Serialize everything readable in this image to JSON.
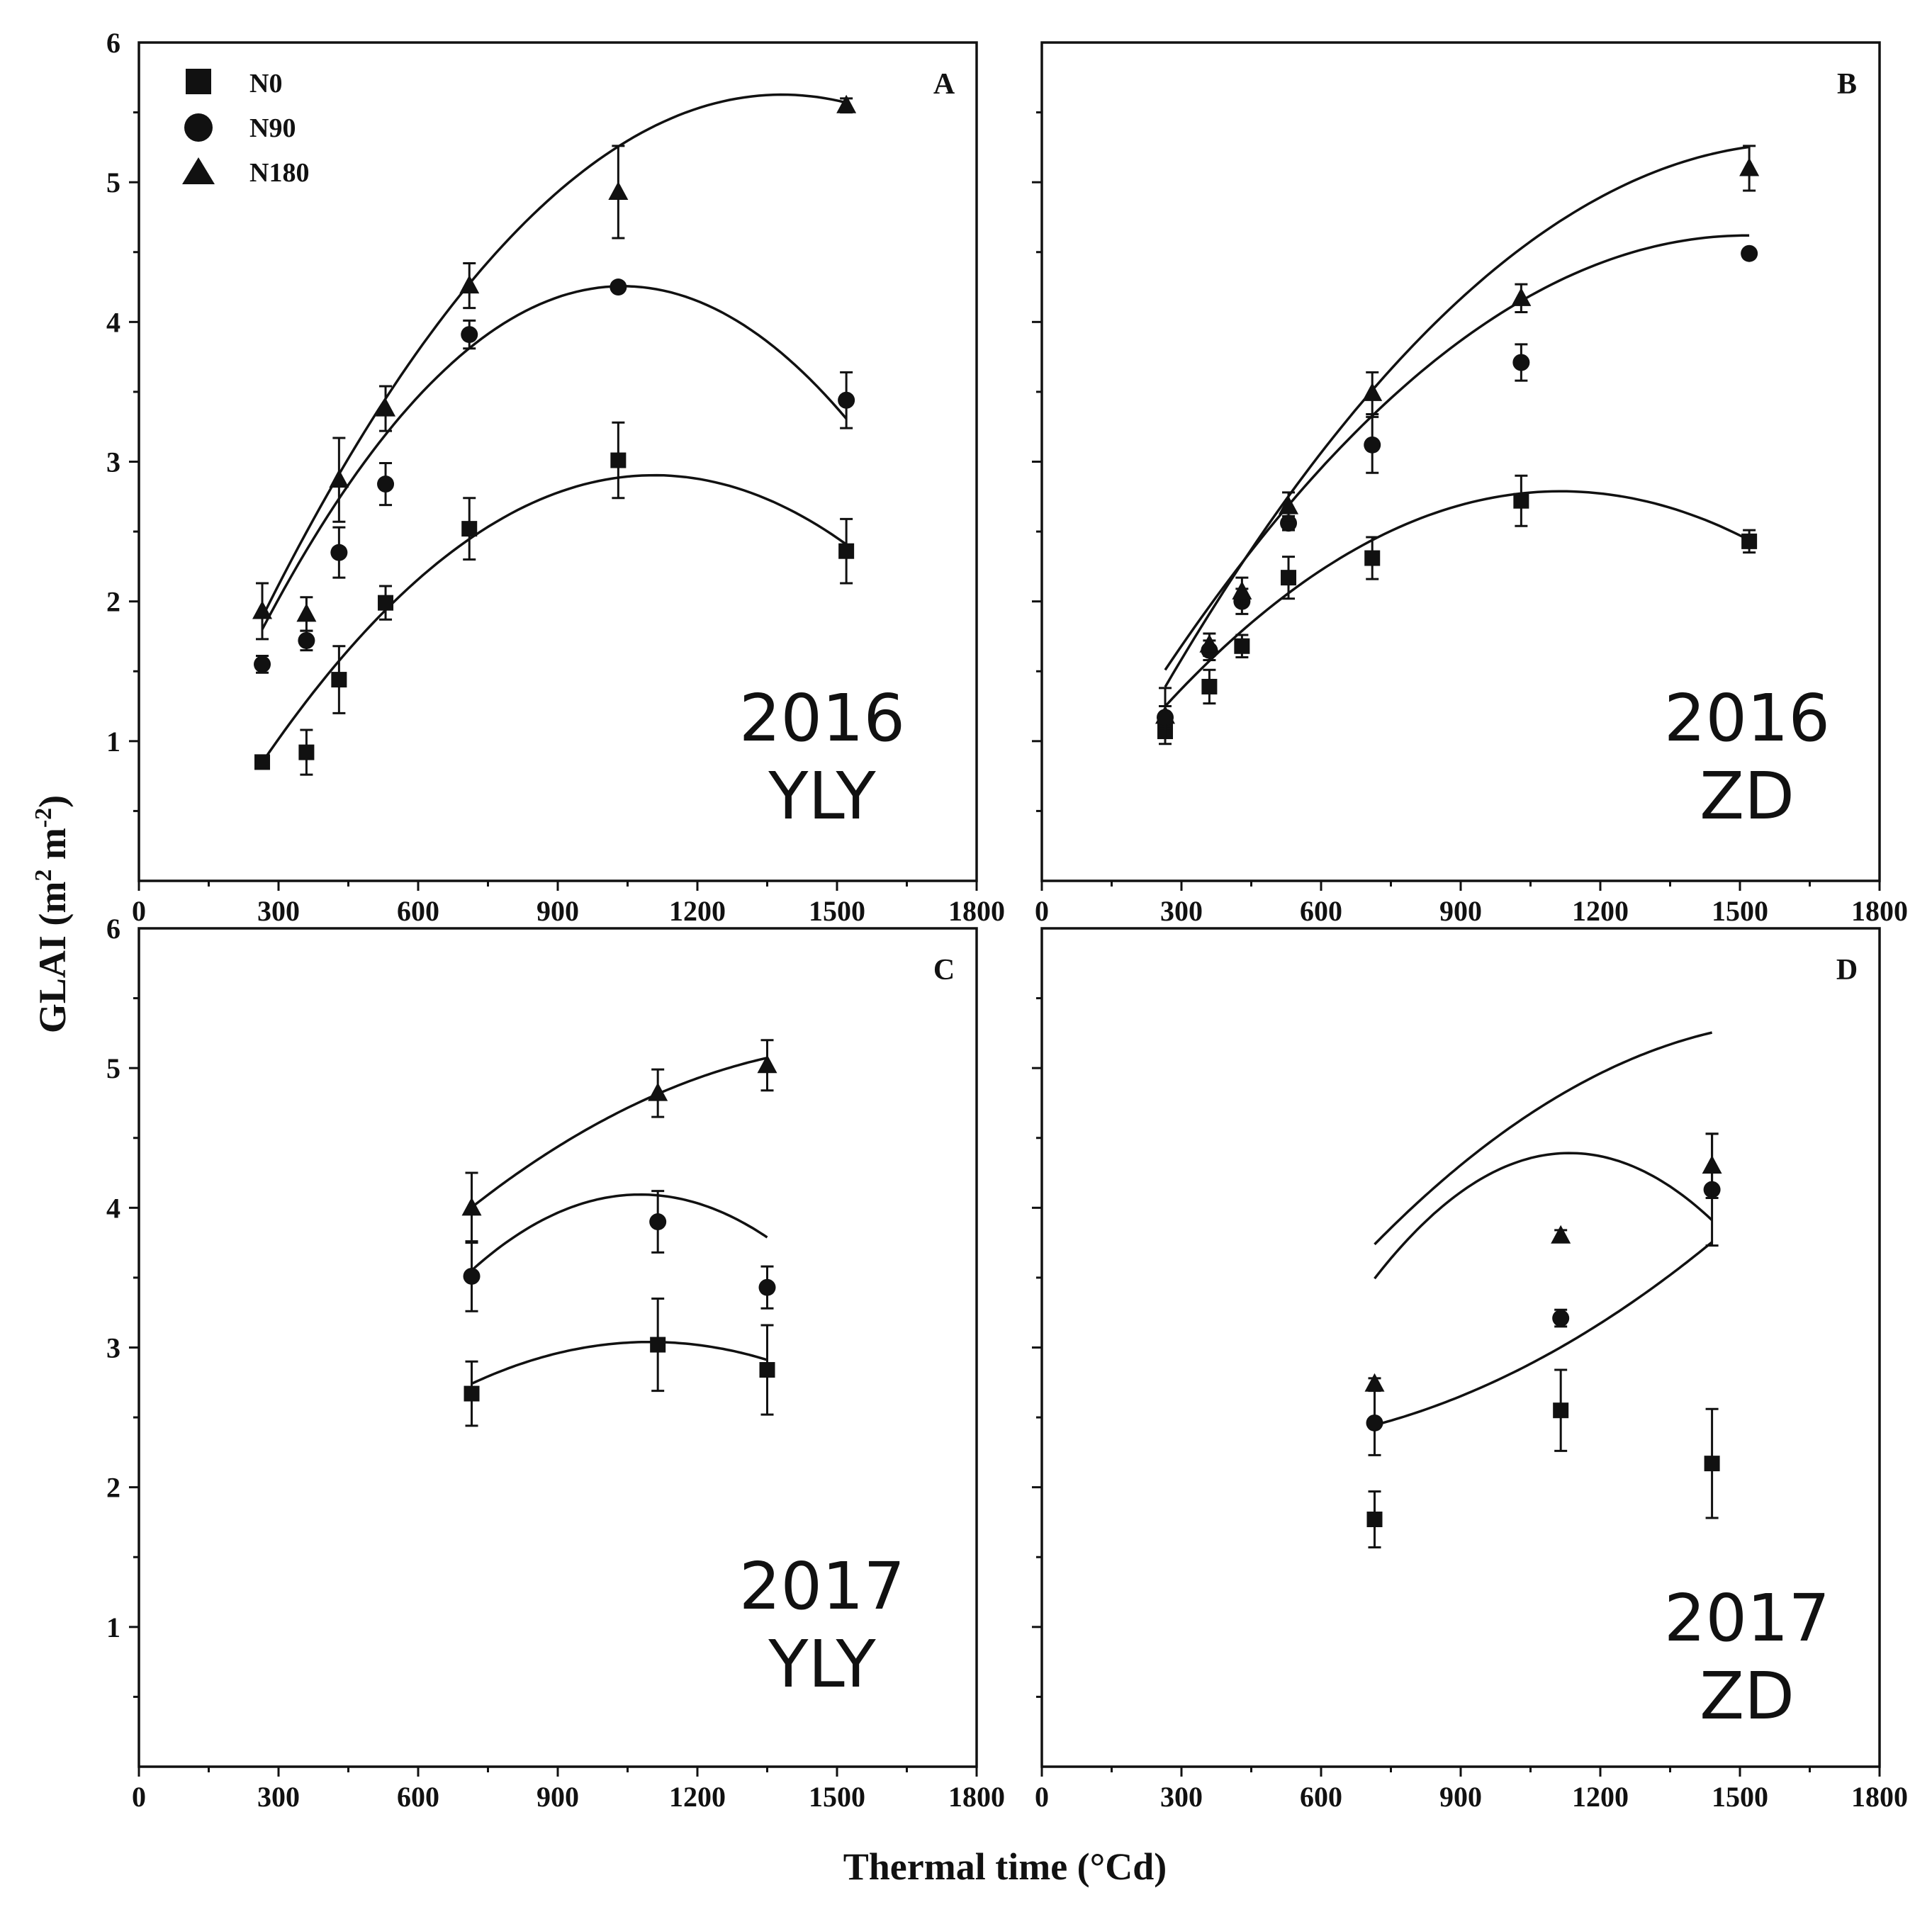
{
  "figure": {
    "ylabel": "GLAI (m",
    "ylabel_sup1": "2",
    "ylabel_mid": " m",
    "ylabel_sup2": "-2",
    "ylabel_end": ")",
    "xlabel": "Thermal time (°Cd)"
  },
  "legend": [
    {
      "name": "N0",
      "marker": "square"
    },
    {
      "name": "N90",
      "marker": "circle"
    },
    {
      "name": "N180",
      "marker": "triangle"
    }
  ],
  "chart_data": [
    {
      "type": "scatter",
      "panel": "A",
      "annotation": [
        "2016",
        "YLY"
      ],
      "xlim": [
        0,
        1800
      ],
      "ylim": [
        0,
        6
      ],
      "xticks": [
        0,
        300,
        600,
        900,
        1200,
        1500,
        1800
      ],
      "yticks": [
        1,
        2,
        3,
        4,
        5,
        6
      ],
      "series": [
        {
          "name": "N0",
          "marker": "square",
          "x": [
            265,
            360,
            430,
            530,
            710,
            1030,
            1520
          ],
          "y": [
            0.85,
            0.92,
            1.44,
            1.99,
            2.52,
            3.01,
            2.36
          ],
          "err": [
            0.03,
            0.16,
            0.24,
            0.12,
            0.22,
            0.27,
            0.23
          ],
          "fit": [
            -2.9e-06,
            0.00642,
            -0.65
          ]
        },
        {
          "name": "N90",
          "marker": "circle",
          "x": [
            265,
            360,
            430,
            530,
            710,
            1030,
            1520
          ],
          "y": [
            1.55,
            1.72,
            2.35,
            2.84,
            3.91,
            4.25,
            3.44
          ],
          "err": [
            0.06,
            0.07,
            0.18,
            0.15,
            0.1,
            0.03,
            0.2
          ],
          "fit": [
            -4.1e-06,
            0.00852,
            -0.17
          ]
        },
        {
          "name": "N180",
          "marker": "triangle",
          "x": [
            265,
            360,
            430,
            530,
            710,
            1030,
            1520
          ],
          "y": [
            1.93,
            1.91,
            2.87,
            3.38,
            4.26,
            4.93,
            5.55
          ],
          "err": [
            0.2,
            0.12,
            0.3,
            0.16,
            0.16,
            0.33,
            0.05
          ],
          "fit": [
            -3e-06,
            0.00829,
            -0.1
          ]
        }
      ]
    },
    {
      "type": "scatter",
      "panel": "B",
      "annotation": [
        "2016",
        "ZD"
      ],
      "xlim": [
        0,
        1800
      ],
      "ylim": [
        0,
        6
      ],
      "xticks": [
        0,
        300,
        600,
        900,
        1200,
        1500,
        1800
      ],
      "yticks": [],
      "series": [
        {
          "name": "N0",
          "marker": "square",
          "x": [
            265,
            360,
            430,
            530,
            710,
            1030,
            1520
          ],
          "y": [
            1.07,
            1.39,
            1.68,
            2.17,
            2.31,
            2.72,
            2.43
          ],
          "err": [
            0.03,
            0.12,
            0.08,
            0.15,
            0.15,
            0.18,
            0.08
          ],
          "fit": [
            -2.13e-06,
            0.00475,
            0.14
          ]
        },
        {
          "name": "N90",
          "marker": "circle",
          "x": [
            265,
            360,
            430,
            530,
            710,
            1030,
            1520
          ],
          "y": [
            1.17,
            1.65,
            2.0,
            2.56,
            3.12,
            3.71,
            4.49
          ],
          "err": [
            0.08,
            0.07,
            0.09,
            0.05,
            0.2,
            0.13,
            0.03
          ],
          "fit": [
            -1.99e-06,
            0.00603,
            0.051
          ]
        },
        {
          "name": "N180",
          "marker": "triangle",
          "x": [
            265,
            360,
            430,
            530,
            710,
            1030,
            1520
          ],
          "y": [
            1.18,
            1.69,
            2.07,
            2.68,
            3.49,
            4.17,
            5.1
          ],
          "err": [
            0.2,
            0.08,
            0.1,
            0.1,
            0.15,
            0.1,
            0.16
          ],
          "fit": [
            -2.09e-06,
            0.00681,
            -0.27
          ]
        }
      ]
    },
    {
      "type": "scatter",
      "panel": "C",
      "annotation": [
        "2017",
        "YLY"
      ],
      "xlim": [
        0,
        1800
      ],
      "ylim": [
        0,
        6
      ],
      "xticks": [
        0,
        300,
        600,
        900,
        1200,
        1500,
        1800
      ],
      "yticks": [
        1,
        2,
        3,
        4,
        5,
        6
      ],
      "series": [
        {
          "name": "N0",
          "marker": "square",
          "x": [
            715,
            1115,
            1350
          ],
          "y": [
            2.67,
            3.02,
            2.84
          ],
          "err": [
            0.23,
            0.33,
            0.32
          ],
          "fit": [
            -2.03e-06,
            0.00446,
            0.59
          ]
        },
        {
          "name": "N90",
          "marker": "circle",
          "x": [
            715,
            1115,
            1350
          ],
          "y": [
            3.51,
            3.9,
            3.43
          ],
          "err": [
            0.25,
            0.22,
            0.15
          ],
          "fit": [
            -4.13e-06,
            0.0089,
            -0.7
          ]
        },
        {
          "name": "N180",
          "marker": "triangle",
          "x": [
            715,
            1115,
            1350
          ],
          "y": [
            4.0,
            4.82,
            5.02
          ],
          "err": [
            0.25,
            0.17,
            0.18
          ],
          "fit": [
            -1.47e-06,
            0.00472,
            1.38
          ]
        }
      ]
    },
    {
      "type": "scatter",
      "panel": "D",
      "annotation": [
        "2017",
        "ZD"
      ],
      "xlim": [
        0,
        1800
      ],
      "ylim": [
        0,
        6
      ],
      "xticks": [
        0,
        300,
        600,
        900,
        1200,
        1500,
        1800
      ],
      "yticks": [],
      "series": [
        {
          "name": "N0",
          "marker": "square",
          "x": [
            715,
            1115,
            1440
          ],
          "y": [
            1.77,
            2.55,
            2.17
          ],
          "err": [
            0.2,
            0.29,
            0.39
          ],
          "fit": [
            -5.12e-06,
            0.01161,
            -2.19
          ]
        },
        {
          "name": "N90",
          "marker": "circle",
          "x": [
            715,
            1115,
            1440
          ],
          "y": [
            2.46,
            3.21,
            4.13
          ],
          "err": [
            0.23,
            0.06,
            0.4
          ],
          "fit": [
            1.27e-06,
            -0.00093,
            2.46
          ]
        },
        {
          "name": "N180",
          "marker": "triangle",
          "x": [
            715,
            1115,
            1440
          ],
          "y": [
            2.74,
            3.8,
            4.3
          ],
          "err": [
            0.04,
            0.04,
            0.23
          ],
          "fit": [
            -1.8e-06,
            0.00597,
            0.39
          ]
        }
      ]
    }
  ]
}
